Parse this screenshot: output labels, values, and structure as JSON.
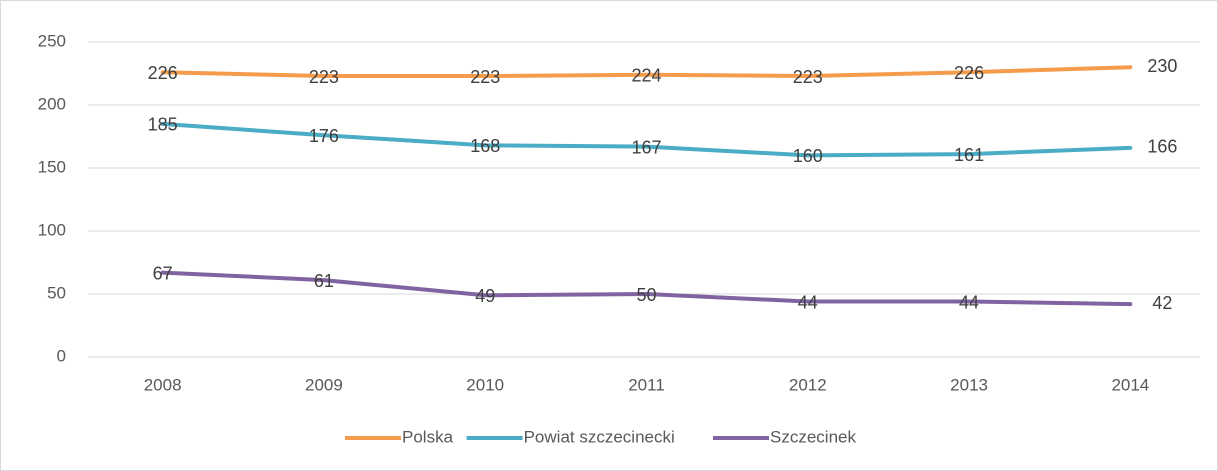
{
  "chart_data": {
    "type": "line",
    "categories": [
      "2008",
      "2009",
      "2010",
      "2011",
      "2012",
      "2013",
      "2014"
    ],
    "series": [
      {
        "name": "Polska",
        "color": "#f59b4c",
        "values": [
          226,
          223,
          223,
          224,
          223,
          226,
          230
        ]
      },
      {
        "name": "Powiat szczecinecki",
        "color": "#4bacc6",
        "values": [
          185,
          176,
          168,
          167,
          160,
          161,
          166
        ]
      },
      {
        "name": "Szczecinek",
        "color": "#8064a2",
        "values": [
          67,
          61,
          49,
          50,
          44,
          44,
          42
        ]
      }
    ],
    "ylim": [
      0,
      250
    ],
    "yticks": [
      0,
      50,
      100,
      150,
      200,
      250
    ],
    "grid": true,
    "legend": "bottom"
  }
}
